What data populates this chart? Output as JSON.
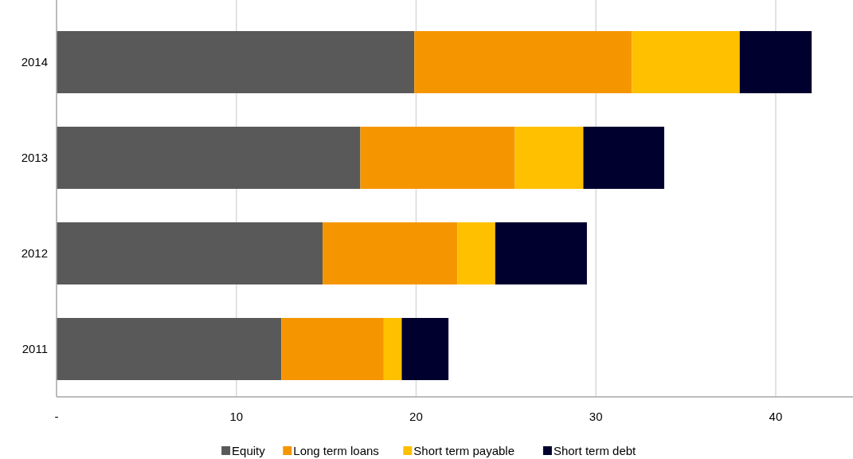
{
  "chart_data": {
    "type": "bar",
    "orientation": "horizontal",
    "stacked": true,
    "categories": [
      "2014",
      "2013",
      "2012",
      "2011"
    ],
    "series": [
      {
        "name": "Equity",
        "color": "#595959",
        "values": [
          19.9,
          16.9,
          14.8,
          12.5
        ]
      },
      {
        "name": "Long term loans",
        "color": "#f59600",
        "values": [
          12.1,
          8.6,
          7.5,
          5.7
        ]
      },
      {
        "name": "Short term payable",
        "color": "#ffc000",
        "values": [
          6.0,
          3.8,
          2.1,
          1.0
        ]
      },
      {
        "name": "Short term debt",
        "color": "#00002e",
        "values": [
          4.0,
          4.5,
          5.1,
          2.6
        ]
      }
    ],
    "xlim": [
      0,
      44.3
    ],
    "xticks": [
      {
        "value": 0,
        "label": "-"
      },
      10,
      20,
      30,
      40
    ],
    "grid": "x",
    "legend": "bottom"
  }
}
